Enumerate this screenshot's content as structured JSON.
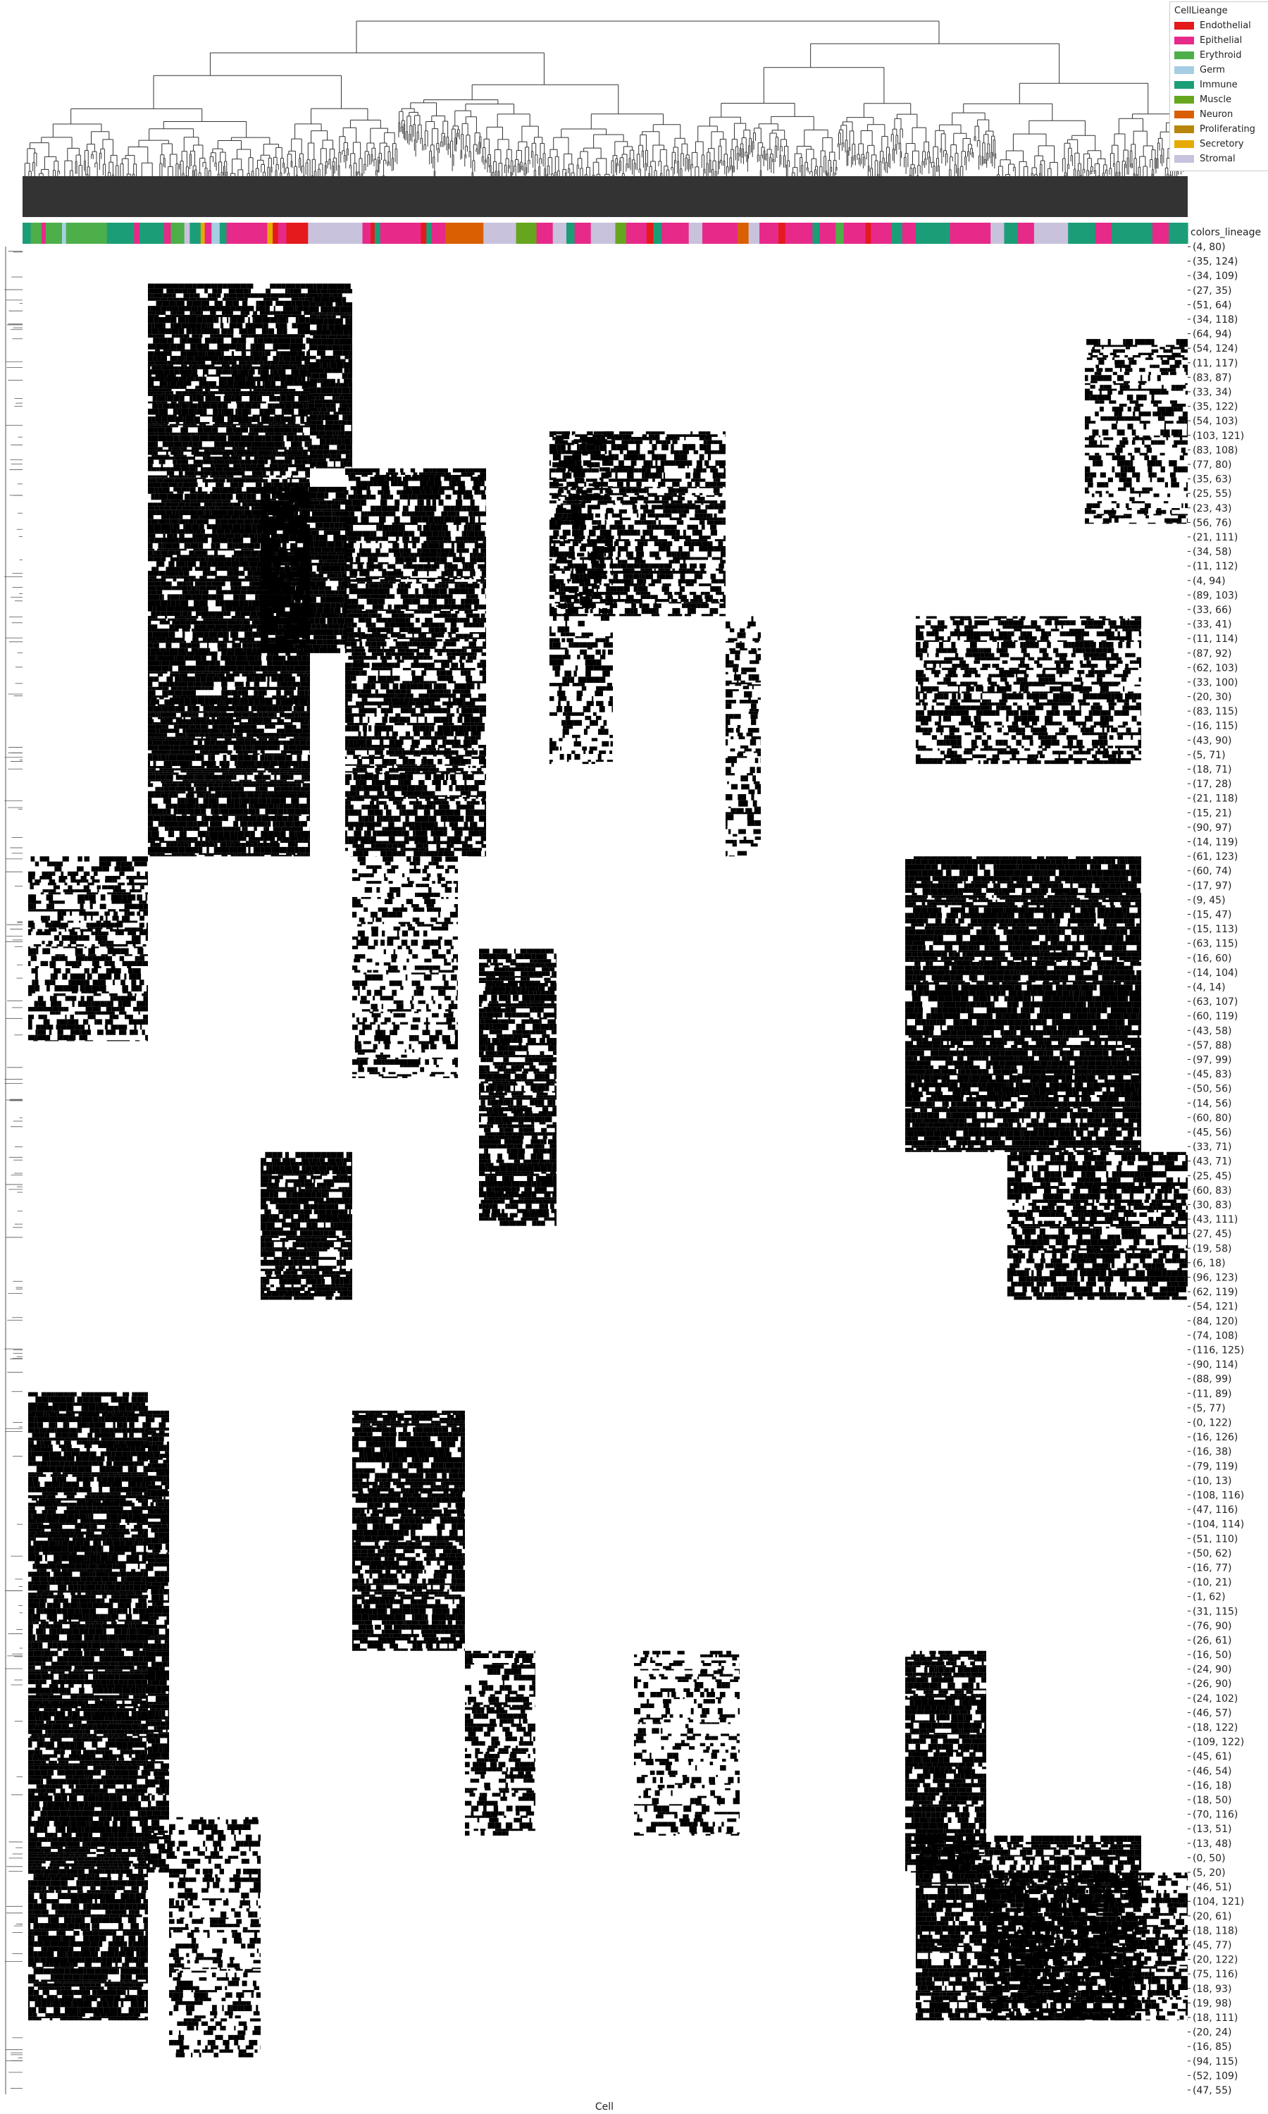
{
  "chart_data": {
    "type": "heatmap",
    "xlabel": "Cell",
    "column_annotation_label": "colors_lineage",
    "legend": {
      "title": "CellLieange",
      "placement": "top-right",
      "items": [
        {
          "name": "Endothelial",
          "color": "#e41a1c"
        },
        {
          "name": "Epithelial",
          "color": "#e7298a"
        },
        {
          "name": "Erythroid",
          "color": "#4daf4a"
        },
        {
          "name": "Germ",
          "color": "#a6cee3"
        },
        {
          "name": "Immune",
          "color": "#1b9e77"
        },
        {
          "name": "Muscle",
          "color": "#66a61e"
        },
        {
          "name": "Neuron",
          "color": "#d95f02"
        },
        {
          "name": "Proliferating",
          "color": "#b8860b"
        },
        {
          "name": "Secretory",
          "color": "#e6ab02"
        },
        {
          "name": "Stromal",
          "color": "#c8c2dc"
        }
      ]
    },
    "row_labels": [
      "(4, 80)",
      "(35, 124)",
      "(34, 109)",
      "(27, 35)",
      "(51, 64)",
      "(34, 118)",
      "(64, 94)",
      "(54, 124)",
      "(11, 117)",
      "(83, 87)",
      "(33, 34)",
      "(35, 122)",
      "(54, 103)",
      "(103, 121)",
      "(83, 108)",
      "(77, 80)",
      "(35, 63)",
      "(25, 55)",
      "(23, 43)",
      "(56, 76)",
      "(21, 111)",
      "(34, 58)",
      "(11, 112)",
      "(4, 94)",
      "(89, 103)",
      "(33, 66)",
      "(33, 41)",
      "(11, 114)",
      "(87, 92)",
      "(62, 103)",
      "(33, 100)",
      "(20, 30)",
      "(83, 115)",
      "(16, 115)",
      "(43, 90)",
      "(5, 71)",
      "(18, 71)",
      "(17, 28)",
      "(21, 118)",
      "(15, 21)",
      "(90, 97)",
      "(14, 119)",
      "(61, 123)",
      "(60, 74)",
      "(17, 97)",
      "(9, 45)",
      "(15, 47)",
      "(15, 113)",
      "(63, 115)",
      "(16, 60)",
      "(14, 104)",
      "(4, 14)",
      "(63, 107)",
      "(60, 119)",
      "(43, 58)",
      "(57, 88)",
      "(97, 99)",
      "(45, 83)",
      "(50, 56)",
      "(14, 56)",
      "(60, 80)",
      "(45, 56)",
      "(33, 71)",
      "(43, 71)",
      "(25, 45)",
      "(60, 83)",
      "(30, 83)",
      "(43, 111)",
      "(27, 45)",
      "(19, 58)",
      "(6, 18)",
      "(96, 123)",
      "(62, 119)",
      "(54, 121)",
      "(84, 120)",
      "(74, 108)",
      "(116, 125)",
      "(90, 114)",
      "(88, 99)",
      "(11, 89)",
      "(5, 77)",
      "(0, 122)",
      "(16, 126)",
      "(16, 38)",
      "(79, 119)",
      "(10, 13)",
      "(108, 116)",
      "(47, 116)",
      "(104, 114)",
      "(51, 110)",
      "(50, 62)",
      "(16, 77)",
      "(10, 21)",
      "(1, 62)",
      "(31, 115)",
      "(76, 90)",
      "(26, 61)",
      "(16, 50)",
      "(24, 90)",
      "(26, 90)",
      "(24, 102)",
      "(46, 57)",
      "(18, 122)",
      "(109, 122)",
      "(45, 61)",
      "(46, 54)",
      "(16, 18)",
      "(18, 50)",
      "(70, 116)",
      "(13, 51)",
      "(13, 48)",
      "(0, 50)",
      "(5, 20)",
      "(46, 51)",
      "(104, 121)",
      "(20, 61)",
      "(18, 118)",
      "(45, 77)",
      "(20, 122)",
      "(75, 116)",
      "(18, 93)",
      "(19, 98)",
      "(18, 111)",
      "(20, 24)",
      "(16, 85)",
      "(94, 115)",
      "(52, 109)",
      "(47, 55)"
    ],
    "lineage_segments": [
      [
        "Immune",
        0.006
      ],
      [
        "Erythroid",
        0.008
      ],
      [
        "Epithelial",
        0.003
      ],
      [
        "Erythroid",
        0.012
      ],
      [
        "Germ",
        0.003
      ],
      [
        "Erythroid",
        0.03
      ],
      [
        "Immune",
        0.02
      ],
      [
        "Epithelial",
        0.004
      ],
      [
        "Immune",
        0.018
      ],
      [
        "Epithelial",
        0.005
      ],
      [
        "Erythroid",
        0.01
      ],
      [
        "Stromal",
        0.004
      ],
      [
        "Immune",
        0.008
      ],
      [
        "Secretory",
        0.003
      ],
      [
        "Epithelial",
        0.005
      ],
      [
        "Germ",
        0.006
      ],
      [
        "Immune",
        0.005
      ],
      [
        "Epithelial",
        0.03
      ],
      [
        "Secretory",
        0.004
      ],
      [
        "Endothelial",
        0.004
      ],
      [
        "Epithelial",
        0.006
      ],
      [
        "Endothelial",
        0.016
      ],
      [
        "Stromal",
        0.04
      ],
      [
        "Epithelial",
        0.006
      ],
      [
        "Endothelial",
        0.003
      ],
      [
        "Immune",
        0.004
      ],
      [
        "Epithelial",
        0.03
      ],
      [
        "Endothelial",
        0.004
      ],
      [
        "Immune",
        0.004
      ],
      [
        "Epithelial",
        0.01
      ],
      [
        "Neuron",
        0.028
      ],
      [
        "Stromal",
        0.024
      ],
      [
        "Muscle",
        0.015
      ],
      [
        "Epithelial",
        0.012
      ],
      [
        "Stromal",
        0.01
      ],
      [
        "Immune",
        0.006
      ],
      [
        "Epithelial",
        0.012
      ],
      [
        "Stromal",
        0.018
      ],
      [
        "Muscle",
        0.008
      ],
      [
        "Epithelial",
        0.015
      ],
      [
        "Endothelial",
        0.005
      ],
      [
        "Immune",
        0.006
      ],
      [
        "Epithelial",
        0.02
      ],
      [
        "Stromal",
        0.01
      ],
      [
        "Epithelial",
        0.026
      ],
      [
        "Neuron",
        0.008
      ],
      [
        "Stromal",
        0.008
      ],
      [
        "Epithelial",
        0.014
      ],
      [
        "Endothelial",
        0.005
      ],
      [
        "Epithelial",
        0.02
      ],
      [
        "Immune",
        0.005
      ],
      [
        "Epithelial",
        0.012
      ],
      [
        "Erythroid",
        0.006
      ],
      [
        "Epithelial",
        0.016
      ],
      [
        "Endothelial",
        0.004
      ],
      [
        "Epithelial",
        0.015
      ],
      [
        "Immune",
        0.008
      ],
      [
        "Epithelial",
        0.01
      ],
      [
        "Immune",
        0.025
      ],
      [
        "Epithelial",
        0.03
      ],
      [
        "Stromal",
        0.01
      ],
      [
        "Immune",
        0.01
      ],
      [
        "Epithelial",
        0.012
      ],
      [
        "Stromal",
        0.025
      ],
      [
        "Immune",
        0.02
      ],
      [
        "Epithelial",
        0.012
      ],
      [
        "Immune",
        0.03
      ],
      [
        "Epithelial",
        0.012
      ],
      [
        "Immune",
        0.014
      ]
    ]
  }
}
